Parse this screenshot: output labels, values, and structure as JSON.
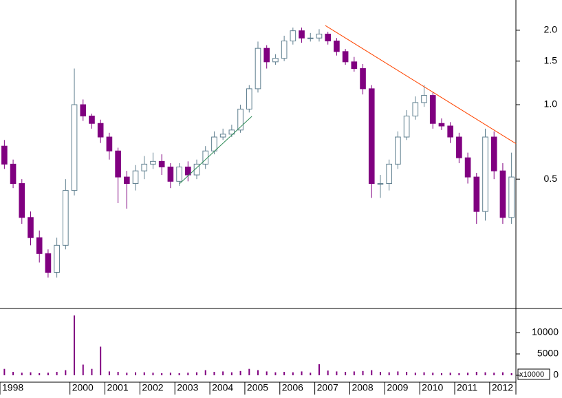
{
  "chart_data": [
    {
      "type": "candlestick",
      "x": [
        1998.125,
        1998.375,
        1998.625,
        1998.875,
        1999.125,
        1999.375,
        1999.625,
        1999.875,
        2000.125,
        2000.375,
        2000.625,
        2000.875,
        2001.125,
        2001.375,
        2001.625,
        2001.875,
        2002.125,
        2002.375,
        2002.625,
        2002.875,
        2003.125,
        2003.375,
        2003.625,
        2003.875,
        2004.125,
        2004.375,
        2004.625,
        2004.875,
        2005.125,
        2005.375,
        2005.625,
        2005.875,
        2006.125,
        2006.375,
        2006.625,
        2006.875,
        2007.125,
        2007.375,
        2007.625,
        2007.875,
        2008.125,
        2008.375,
        2008.625,
        2008.875,
        2009.125,
        2009.375,
        2009.625,
        2009.875,
        2010.125,
        2010.375,
        2010.625,
        2010.875,
        2011.125,
        2011.375,
        2011.625,
        2011.875,
        2012.125,
        2012.375,
        2012.625
      ],
      "open": [
        0.68,
        0.575,
        0.48,
        0.35,
        0.29,
        0.25,
        0.21,
        0.27,
        0.45,
        1.0,
        0.9,
        0.84,
        0.74,
        0.65,
        0.51,
        0.48,
        0.54,
        0.575,
        0.59,
        0.56,
        0.49,
        0.56,
        0.52,
        0.575,
        0.65,
        0.74,
        0.76,
        0.79,
        0.96,
        1.16,
        1.69,
        1.49,
        1.54,
        1.81,
        1.99,
        1.86,
        1.86,
        1.93,
        1.81,
        1.64,
        1.49,
        1.4,
        1.16,
        0.48,
        0.48,
        0.575,
        0.74,
        0.9,
        1.02,
        1.09,
        0.84,
        0.82,
        0.74,
        0.61,
        0.51,
        0.37,
        0.74,
        0.54,
        0.35
      ],
      "high": [
        0.72,
        0.6,
        0.5,
        0.37,
        0.31,
        0.26,
        0.29,
        0.5,
        1.4,
        1.05,
        0.92,
        0.87,
        0.77,
        0.67,
        0.54,
        0.57,
        0.62,
        0.64,
        0.63,
        0.58,
        0.58,
        0.59,
        0.6,
        0.68,
        0.78,
        0.8,
        0.83,
        1.0,
        1.2,
        1.8,
        1.74,
        1.6,
        1.9,
        2.05,
        2.05,
        1.95,
        2.02,
        1.97,
        1.86,
        1.68,
        1.56,
        1.46,
        1.2,
        0.52,
        0.6,
        0.78,
        0.95,
        1.08,
        1.2,
        1.12,
        0.88,
        0.85,
        0.77,
        0.64,
        0.53,
        0.8,
        0.78,
        0.58,
        0.64
      ],
      "low": [
        0.55,
        0.46,
        0.33,
        0.27,
        0.23,
        0.2,
        0.2,
        0.26,
        0.43,
        0.86,
        0.8,
        0.7,
        0.6,
        0.4,
        0.38,
        0.45,
        0.5,
        0.55,
        0.52,
        0.46,
        0.47,
        0.49,
        0.5,
        0.55,
        0.63,
        0.72,
        0.74,
        0.77,
        0.93,
        1.12,
        1.4,
        1.45,
        1.5,
        1.75,
        1.78,
        1.8,
        1.8,
        1.75,
        1.58,
        1.45,
        1.36,
        1.1,
        0.42,
        0.42,
        0.45,
        0.55,
        0.72,
        0.87,
        0.98,
        0.8,
        0.79,
        0.7,
        0.58,
        0.48,
        0.33,
        0.34,
        0.5,
        0.33,
        0.33
      ],
      "close": [
        0.575,
        0.48,
        0.35,
        0.29,
        0.25,
        0.21,
        0.27,
        0.45,
        1.0,
        0.9,
        0.84,
        0.74,
        0.65,
        0.51,
        0.48,
        0.54,
        0.575,
        0.59,
        0.56,
        0.49,
        0.56,
        0.52,
        0.575,
        0.65,
        0.74,
        0.76,
        0.79,
        0.96,
        1.16,
        1.69,
        1.49,
        1.54,
        1.81,
        1.99,
        1.86,
        1.86,
        1.93,
        1.81,
        1.64,
        1.49,
        1.4,
        1.16,
        0.48,
        0.48,
        0.575,
        0.74,
        0.9,
        1.02,
        1.09,
        0.84,
        0.82,
        0.74,
        0.61,
        0.51,
        0.37,
        0.74,
        0.54,
        0.35,
        0.51
      ],
      "up_color": "#5f7f8f",
      "down_color": "#800080",
      "log_scale": true,
      "xlim": [
        1998,
        2012.75
      ],
      "xticks": [
        1998,
        2000,
        2001,
        2002,
        2003,
        2004,
        2005,
        2006,
        2007,
        2008,
        2009,
        2010,
        2011,
        2012
      ],
      "ylim": [
        0.15,
        2.65
      ],
      "yticks": [
        {
          "value": 2,
          "label": "2.0"
        },
        1.5,
        {
          "value": 1,
          "label": "1.0"
        },
        0.5
      ],
      "trendlines": [
        {
          "x": [
            2003.14,
            2005.2
          ],
          "y": [
            0.48,
            0.897
          ],
          "color": "#2e8b57"
        },
        {
          "x": [
            2007.3,
            2012.75
          ],
          "y": [
            2.09,
            0.696
          ],
          "color": "#ff4500"
        }
      ]
    },
    {
      "type": "bar",
      "x": [
        1998.125,
        1998.375,
        1998.625,
        1998.875,
        1999.125,
        1999.375,
        1999.625,
        1999.875,
        2000.125,
        2000.375,
        2000.625,
        2000.875,
        2001.125,
        2001.375,
        2001.625,
        2001.875,
        2002.125,
        2002.375,
        2002.625,
        2002.875,
        2003.125,
        2003.375,
        2003.625,
        2003.875,
        2004.125,
        2004.375,
        2004.625,
        2004.875,
        2005.125,
        2005.375,
        2005.625,
        2005.875,
        2006.125,
        2006.375,
        2006.625,
        2006.875,
        2007.125,
        2007.375,
        2007.625,
        2007.875,
        2008.125,
        2008.375,
        2008.625,
        2008.875,
        2009.125,
        2009.375,
        2009.625,
        2009.875,
        2010.125,
        2010.375,
        2010.625,
        2010.875,
        2011.125,
        2011.375,
        2011.625,
        2011.875,
        2012.125,
        2012.375,
        2012.625
      ],
      "values": [
        1500,
        800,
        600,
        700,
        500,
        600,
        800,
        1200,
        14000,
        2500,
        1500,
        6700,
        900,
        800,
        600,
        700,
        700,
        600,
        500,
        600,
        500,
        600,
        700,
        1200,
        800,
        900,
        700,
        1000,
        1500,
        1200,
        900,
        700,
        800,
        700,
        900,
        600,
        2600,
        1100,
        900,
        800,
        900,
        1000,
        1200,
        800,
        700,
        900,
        800,
        600,
        700,
        600,
        500,
        600,
        500,
        600,
        800,
        700,
        600,
        700,
        500
      ],
      "color": "#800080",
      "ylim": [
        0,
        15000
      ],
      "yticks": [
        10000,
        5000,
        0
      ],
      "unit_label": "x10000"
    }
  ]
}
